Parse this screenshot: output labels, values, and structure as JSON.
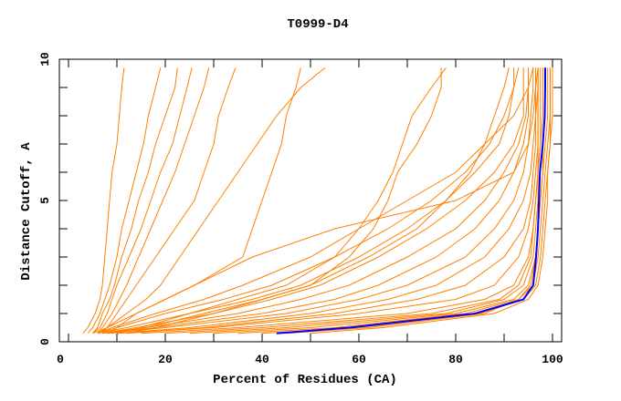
{
  "chart_data": {
    "type": "line",
    "title": "T0999-D4",
    "xlabel": "Percent of Residues (CA)",
    "ylabel": "Distance Cutoff, A",
    "xlim": [
      0,
      100
    ],
    "ylim": [
      0,
      10
    ],
    "x_tick_labels": [
      "0",
      "20",
      "40",
      "60",
      "80",
      "100"
    ],
    "y_tick_labels": [
      "0",
      "5",
      "10"
    ],
    "grid": false,
    "legend": "none",
    "colors": {
      "series": "#ff8000",
      "highlight": "#0000ff"
    },
    "y": [
      0.3,
      0.5,
      1,
      1.5,
      2,
      3,
      4,
      5,
      6,
      7,
      8,
      9,
      9.7
    ],
    "series": [
      {
        "x": [
          3,
          4,
          5.5,
          6.5,
          7,
          7.5,
          8,
          8.5,
          9,
          10,
          10.5,
          11,
          11.5
        ]
      },
      {
        "x": [
          4,
          5,
          6.5,
          7.5,
          8.5,
          10,
          11,
          12.5,
          14,
          15.5,
          16.5,
          18,
          19
        ]
      },
      {
        "x": [
          5,
          6,
          7,
          8.5,
          9.5,
          11,
          13,
          14.5,
          16.5,
          18,
          20,
          22,
          22.5
        ]
      },
      {
        "x": [
          5,
          6.5,
          8,
          9,
          10,
          12.5,
          15,
          17,
          19,
          21.5,
          23,
          24.5,
          25.5
        ]
      },
      {
        "x": [
          6,
          7,
          9,
          10.5,
          12,
          14.5,
          17,
          19.5,
          22,
          24,
          26,
          28,
          29
        ]
      },
      {
        "x": [
          6.5,
          8,
          10,
          12,
          14,
          18,
          22,
          26,
          28,
          30,
          31,
          33,
          34.5
        ]
      },
      {
        "x": [
          8,
          10,
          14,
          20,
          26,
          36,
          38,
          40,
          42,
          44,
          45,
          47,
          48
        ]
      },
      {
        "x": [
          6,
          8,
          12,
          16,
          19,
          23,
          27,
          31,
          35,
          39,
          43,
          48,
          53
        ]
      },
      {
        "x": [
          10,
          15,
          25,
          35,
          45,
          55,
          60,
          64,
          67,
          69,
          71,
          75,
          78
        ]
      },
      {
        "x": [
          12,
          18,
          30,
          40,
          50,
          58,
          63,
          66,
          68,
          72,
          75,
          77,
          77
        ]
      },
      {
        "x": [
          30,
          50,
          80,
          92,
          95,
          96.5,
          97,
          97.5,
          98,
          98.5,
          99,
          99,
          99
        ]
      },
      {
        "x": [
          35,
          55,
          82,
          93,
          96,
          97,
          97.5,
          98,
          98.5,
          99,
          99.5,
          99.5,
          99.5
        ]
      },
      {
        "x": [
          40,
          60,
          85,
          94,
          96.5,
          97.5,
          98,
          98.5,
          99,
          99.5,
          100,
          100,
          100
        ]
      },
      {
        "x": [
          45,
          62,
          86,
          93,
          95.5,
          96.5,
          97,
          97.5,
          98,
          98,
          98.5,
          98.5,
          98.5
        ]
      },
      {
        "x": [
          25,
          45,
          78,
          90,
          94,
          96,
          96.5,
          97,
          97,
          97.5,
          97.5,
          97.5,
          97.5
        ]
      },
      {
        "x": [
          20,
          40,
          75,
          89,
          93,
          95.5,
          96,
          96.5,
          97,
          97,
          97,
          97,
          97
        ]
      },
      {
        "x": [
          50,
          65,
          88,
          95,
          97,
          98,
          98.5,
          99,
          99,
          99.5,
          99.5,
          99.5,
          99.5
        ]
      },
      {
        "x": [
          15,
          35,
          70,
          86,
          92,
          95,
          96,
          96.5,
          97,
          97.5,
          98,
          98,
          98
        ]
      },
      {
        "x": [
          10,
          30,
          60,
          80,
          88,
          93,
          95,
          96,
          96.5,
          97,
          97,
          97,
          97
        ]
      },
      {
        "x": [
          12,
          28,
          55,
          72,
          82,
          90,
          94,
          95.5,
          96,
          96.5,
          96.5,
          97,
          97
        ]
      },
      {
        "x": [
          10,
          25,
          50,
          66,
          76,
          86,
          91,
          94,
          95.5,
          96,
          96.5,
          96.5,
          96.5
        ]
      },
      {
        "x": [
          8,
          20,
          45,
          60,
          70,
          82,
          88,
          92,
          94,
          95,
          95.5,
          96,
          96
        ]
      },
      {
        "x": [
          8,
          18,
          40,
          55,
          64,
          76,
          84,
          89,
          92,
          94,
          95,
          95,
          95
        ]
      },
      {
        "x": [
          7,
          16,
          35,
          48,
          58,
          70,
          80,
          86,
          90,
          93,
          94.5,
          95,
          95
        ]
      },
      {
        "x": [
          7,
          14,
          30,
          42,
          52,
          64,
          74,
          82,
          88,
          92,
          94,
          94,
          94
        ]
      },
      {
        "x": [
          6,
          12,
          25,
          38,
          48,
          60,
          70,
          78,
          84,
          89,
          91,
          92,
          92
        ]
      },
      {
        "x": [
          6,
          10,
          20,
          32,
          42,
          55,
          66,
          75,
          82,
          87,
          90,
          92,
          93
        ]
      },
      {
        "x": [
          9,
          16,
          28,
          40,
          50,
          62,
          72,
          78,
          83,
          86,
          88,
          90,
          91
        ]
      },
      {
        "x": [
          6,
          9,
          18,
          28,
          36,
          50,
          60,
          70,
          80,
          86,
          92,
          95,
          96
        ]
      },
      {
        "x": [
          5,
          8,
          14,
          20,
          26,
          38,
          55,
          80,
          92,
          95,
          96,
          96.5,
          97
        ]
      }
    ],
    "highlight_series": {
      "x": [
        43,
        58,
        84,
        94,
        96,
        96.6,
        97,
        97.2,
        97.4,
        98,
        98.4,
        98.5,
        98.5
      ]
    }
  }
}
